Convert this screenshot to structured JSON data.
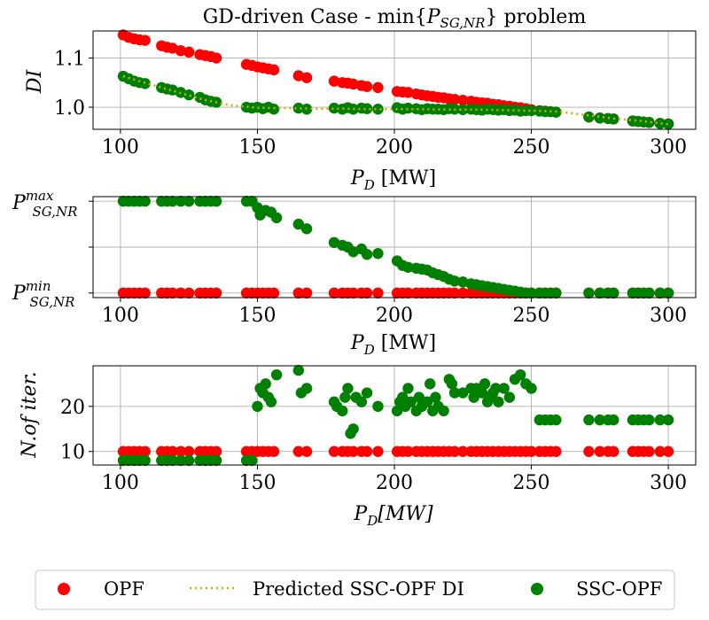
{
  "colors": {
    "opf": "#ff0000",
    "ssc": "#008000",
    "predicted": "#c8b400"
  },
  "legend": {
    "opf": "OPF",
    "predicted": "Predicted SSC-OPF DI",
    "ssc": "SSC-OPF"
  },
  "chart_data": [
    {
      "type": "scatter",
      "title": "GD-driven Case - min{P_SG,NR} problem",
      "title_parts": {
        "prefix": "GD-driven Case - min{",
        "var": "P",
        "sub": "SG,NR",
        "suffix": "} problem"
      },
      "xlabel": "P_D [MW]",
      "xlabel_parts": {
        "var": "P",
        "sub": "D",
        "unit": " [MW]"
      },
      "ylabel": "DI",
      "xlim": [
        90,
        310
      ],
      "ylim": [
        0.955,
        1.155
      ],
      "xticks": [
        100,
        150,
        200,
        250,
        300
      ],
      "yticks": [
        1.0,
        1.1
      ],
      "ytick_labels": [
        "1.0",
        "1.1"
      ],
      "grid": true,
      "series": [
        {
          "name": "OPF",
          "x": [
            101,
            103,
            105,
            107,
            109,
            115,
            117,
            119,
            122,
            125,
            129,
            131,
            133,
            135,
            146,
            148,
            150,
            152,
            154,
            156,
            165,
            168,
            178,
            181,
            183,
            185,
            188,
            190,
            194,
            201,
            203,
            205,
            208,
            210,
            212,
            214,
            216,
            218,
            220,
            222,
            225,
            228,
            230,
            232,
            234,
            236,
            238,
            240,
            242,
            244,
            246,
            248,
            250,
            253,
            255,
            257,
            259,
            271,
            275,
            278,
            280,
            287,
            289,
            291,
            293,
            297,
            300
          ],
          "y": [
            1.147,
            1.142,
            1.139,
            1.137,
            1.136,
            1.125,
            1.122,
            1.12,
            1.115,
            1.112,
            1.107,
            1.105,
            1.103,
            1.1,
            1.087,
            1.085,
            1.082,
            1.08,
            1.078,
            1.076,
            1.064,
            1.06,
            1.053,
            1.05,
            1.049,
            1.047,
            1.044,
            1.042,
            1.04,
            1.032,
            1.031,
            1.03,
            1.027,
            1.025,
            1.023,
            1.022,
            1.02,
            1.019,
            1.017,
            1.016,
            1.014,
            1.012,
            1.01,
            1.009,
            1.008,
            1.006,
            1.005,
            1.003,
            1.002,
            1.0,
            0.999,
            0.997,
            0.995,
            0.993,
            0.992,
            0.991,
            0.99,
            0.98,
            0.978,
            0.977,
            0.976,
            0.972,
            0.971,
            0.97,
            0.969,
            0.967,
            0.966
          ]
        },
        {
          "name": "SSC-OPF",
          "x": [
            101,
            103,
            105,
            107,
            109,
            115,
            117,
            119,
            122,
            125,
            129,
            131,
            133,
            135,
            146,
            148,
            150,
            152,
            154,
            156,
            165,
            168,
            178,
            181,
            183,
            185,
            188,
            190,
            194,
            201,
            203,
            205,
            208,
            210,
            212,
            214,
            216,
            218,
            220,
            222,
            225,
            228,
            230,
            232,
            234,
            236,
            238,
            240,
            242,
            244,
            246,
            248,
            250,
            253,
            255,
            257,
            259,
            271,
            275,
            278,
            280,
            287,
            289,
            291,
            293,
            297,
            300
          ],
          "y": [
            1.063,
            1.058,
            1.053,
            1.05,
            1.048,
            1.04,
            1.037,
            1.035,
            1.03,
            1.025,
            1.02,
            1.015,
            1.012,
            1.01,
            1.0,
            0.998,
            1.0,
            0.997,
            1.0,
            0.996,
            0.998,
            0.996,
            0.998,
            0.996,
            0.999,
            0.996,
            0.998,
            0.997,
            0.996,
            0.999,
            0.996,
            0.998,
            0.997,
            0.995,
            0.997,
            0.996,
            0.996,
            0.995,
            0.997,
            0.996,
            0.995,
            0.996,
            0.995,
            0.994,
            0.996,
            0.995,
            0.994,
            0.995,
            0.993,
            0.994,
            0.992,
            0.993,
            0.993,
            0.992,
            0.991,
            0.991,
            0.99,
            0.98,
            0.978,
            0.977,
            0.976,
            0.972,
            0.971,
            0.97,
            0.969,
            0.967,
            0.966
          ]
        }
      ],
      "predicted_line": {
        "name": "Predicted SSC-OPF DI",
        "x": [
          101,
          110,
          120,
          130,
          140,
          150,
          160,
          170,
          180,
          190,
          200,
          210,
          220,
          230,
          240,
          250,
          260,
          270,
          280,
          290,
          300
        ],
        "y": [
          1.063,
          1.048,
          1.032,
          1.016,
          1.004,
          0.999,
          0.998,
          0.997,
          0.997,
          0.996,
          0.996,
          0.996,
          0.995,
          0.995,
          0.994,
          0.993,
          0.991,
          0.984,
          0.977,
          0.972,
          0.965
        ]
      }
    },
    {
      "type": "scatter",
      "xlabel": "P_D [MW]",
      "xlabel_parts": {
        "var": "P",
        "sub": "D",
        "unit": " [MW]"
      },
      "ylabel": "",
      "xlim": [
        90,
        310
      ],
      "ylim": [
        -0.05,
        1.05
      ],
      "xticks": [
        100,
        150,
        200,
        250,
        300
      ],
      "yticks": [
        0,
        0.5,
        1
      ],
      "ytick_labels": [
        "P_SG,NR^min",
        "",
        "P_SG,NR^max"
      ],
      "ytick_parts": {
        "max": {
          "var": "P",
          "sup": "max",
          "sub": "SG,NR"
        },
        "min": {
          "var": "P",
          "sup": "min",
          "sub": "SG,NR"
        }
      },
      "grid": true,
      "series": [
        {
          "name": "OPF",
          "x": [
            101,
            103,
            105,
            107,
            109,
            115,
            117,
            119,
            122,
            125,
            129,
            131,
            133,
            135,
            146,
            148,
            150,
            152,
            154,
            156,
            165,
            168,
            178,
            181,
            183,
            185,
            188,
            190,
            194,
            201,
            203,
            205,
            208,
            210,
            212,
            214,
            216,
            218,
            220,
            222,
            225,
            228,
            230,
            232,
            234,
            236,
            238,
            240,
            242,
            244,
            246,
            248,
            250,
            253,
            255,
            257,
            259,
            271,
            275,
            278,
            280,
            287,
            289,
            291,
            293,
            297,
            300
          ],
          "y": [
            0,
            0,
            0,
            0,
            0,
            0,
            0,
            0,
            0,
            0,
            0,
            0,
            0,
            0,
            0,
            0,
            0,
            0,
            0,
            0,
            0,
            0,
            0,
            0,
            0,
            0,
            0,
            0,
            0,
            0,
            0,
            0,
            0,
            0,
            0,
            0,
            0,
            0,
            0,
            0,
            0,
            0,
            0,
            0,
            0,
            0,
            0,
            0,
            0,
            0,
            0,
            0,
            0,
            0,
            0,
            0,
            0,
            0,
            0,
            0,
            0,
            0,
            0,
            0,
            0,
            0,
            0
          ]
        },
        {
          "name": "SSC-OPF",
          "x": [
            101,
            103,
            105,
            107,
            109,
            115,
            117,
            119,
            122,
            125,
            129,
            131,
            133,
            135,
            146,
            148,
            150,
            151,
            153,
            155,
            157,
            165,
            168,
            178,
            181,
            183,
            185,
            188,
            190,
            194,
            201,
            203,
            205,
            208,
            210,
            212,
            214,
            216,
            218,
            220,
            222,
            225,
            228,
            230,
            232,
            234,
            236,
            238,
            240,
            242,
            244,
            246,
            248,
            250,
            253,
            255,
            257,
            259,
            271,
            275,
            278,
            280,
            287,
            289,
            291,
            293,
            297,
            300
          ],
          "y": [
            1,
            1,
            1,
            1,
            1,
            1,
            1,
            1,
            1,
            1,
            1,
            1,
            1,
            1,
            1,
            1,
            0.93,
            0.85,
            0.9,
            0.88,
            0.82,
            0.75,
            0.7,
            0.55,
            0.52,
            0.5,
            0.45,
            0.48,
            0.42,
            0.43,
            0.35,
            0.3,
            0.28,
            0.27,
            0.26,
            0.25,
            0.22,
            0.2,
            0.18,
            0.15,
            0.13,
            0.12,
            0.1,
            0.09,
            0.08,
            0.07,
            0.06,
            0.05,
            0.04,
            0.03,
            0.02,
            0.01,
            0,
            0,
            0,
            0,
            0,
            0,
            0,
            0,
            0,
            0,
            0,
            0,
            0,
            0,
            0,
            0
          ]
        }
      ]
    },
    {
      "type": "scatter",
      "xlabel": "P_D[MW]",
      "xlabel_parts": {
        "var": "P",
        "sub": "D",
        "unit": "[MW]"
      },
      "ylabel": "N.of iter.",
      "xlim": [
        90,
        310
      ],
      "ylim": [
        7,
        29
      ],
      "xticks": [
        100,
        150,
        200,
        250,
        300
      ],
      "yticks": [
        10,
        20
      ],
      "ytick_labels": [
        "10",
        "20"
      ],
      "grid": true,
      "series": [
        {
          "name": "OPF",
          "x": [
            101,
            103,
            105,
            107,
            109,
            115,
            117,
            119,
            122,
            125,
            129,
            131,
            133,
            135,
            146,
            148,
            150,
            152,
            154,
            156,
            165,
            168,
            178,
            181,
            183,
            185,
            188,
            190,
            194,
            201,
            203,
            205,
            208,
            210,
            212,
            214,
            216,
            218,
            220,
            222,
            225,
            228,
            230,
            232,
            234,
            236,
            238,
            240,
            242,
            244,
            246,
            248,
            250,
            253,
            255,
            257,
            259,
            271,
            275,
            278,
            280,
            287,
            289,
            291,
            293,
            297,
            300
          ],
          "y": [
            10,
            10,
            10,
            10,
            10,
            10,
            10,
            10,
            10,
            10,
            10,
            10,
            10,
            10,
            10,
            10,
            10,
            10,
            10,
            10,
            10,
            10,
            10,
            10,
            10,
            10,
            10,
            10,
            10,
            10,
            10,
            10,
            10,
            10,
            10,
            10,
            10,
            10,
            10,
            10,
            10,
            10,
            10,
            10,
            10,
            10,
            10,
            10,
            10,
            10,
            10,
            10,
            10,
            10,
            10,
            10,
            10,
            10,
            10,
            10,
            10,
            10,
            10,
            10,
            10,
            10,
            10
          ]
        },
        {
          "name": "SSC-OPF",
          "x": [
            101,
            103,
            105,
            107,
            109,
            115,
            117,
            119,
            122,
            125,
            129,
            131,
            133,
            135,
            146,
            148,
            150,
            151,
            152,
            153,
            154,
            155,
            157,
            165,
            166,
            168,
            178,
            179,
            181,
            182,
            183,
            184,
            185,
            186,
            188,
            190,
            194,
            201,
            202,
            203,
            204,
            205,
            206,
            208,
            209,
            210,
            212,
            213,
            214,
            215,
            216,
            218,
            220,
            221,
            222,
            225,
            228,
            229,
            230,
            232,
            233,
            234,
            235,
            236,
            237,
            238,
            240,
            242,
            244,
            246,
            248,
            250,
            253,
            255,
            257,
            259,
            271,
            275,
            278,
            280,
            287,
            289,
            291,
            293,
            297,
            300
          ],
          "y": [
            8,
            8,
            8,
            8,
            8,
            8,
            8,
            8,
            8,
            8,
            8,
            8,
            8,
            8,
            8,
            8,
            20,
            24,
            23,
            25,
            22,
            21,
            27,
            28,
            23,
            24,
            21,
            20,
            19,
            22,
            24,
            14,
            15,
            22,
            21,
            23,
            20,
            19,
            21,
            22,
            20,
            24,
            21,
            19,
            22,
            20,
            21,
            25,
            19,
            22,
            20,
            19,
            26,
            25,
            23,
            23,
            24,
            22,
            24,
            23,
            25,
            21,
            22,
            23,
            24,
            21,
            24,
            22,
            26,
            27,
            25,
            24,
            17,
            17,
            17,
            17,
            17,
            17,
            17,
            17,
            17,
            17,
            17,
            17,
            17,
            17
          ]
        }
      ]
    }
  ]
}
